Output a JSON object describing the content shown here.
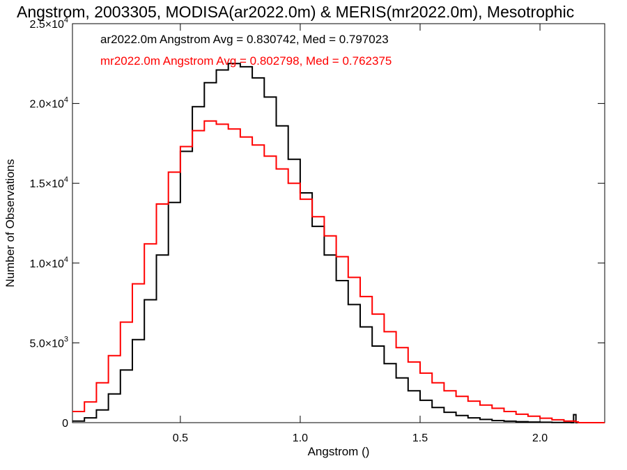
{
  "chart_data": {
    "type": "line",
    "title": "Angstrom, 2003305, MODISA(ar2022.0m) & MERIS(mr2022.0m), Mesotrophic",
    "xlabel": "Angstrom ()",
    "ylabel": "Number of Observations",
    "xlim": [
      0.05,
      2.27
    ],
    "ylim": [
      0,
      25000
    ],
    "x_ticks": [
      {
        "value": 0.5,
        "label": "0.5"
      },
      {
        "value": 1.0,
        "label": "1.0"
      },
      {
        "value": 1.5,
        "label": "1.5"
      },
      {
        "value": 2.0,
        "label": "2.0"
      }
    ],
    "y_ticks": [
      {
        "value": 0,
        "mant": "0",
        "exp": ""
      },
      {
        "value": 5000,
        "mant": "5.0×10",
        "exp": "3"
      },
      {
        "value": 10000,
        "mant": "1.0×10",
        "exp": "4"
      },
      {
        "value": 15000,
        "mant": "1.5×10",
        "exp": "4"
      },
      {
        "value": 20000,
        "mant": "2.0×10",
        "exp": "4"
      },
      {
        "value": 25000,
        "mant": "2.5×10",
        "exp": "4"
      }
    ],
    "grid": false,
    "step": true,
    "series": [
      {
        "name": "ar2022.0m",
        "color": "#000000",
        "stats_label": "ar2022.0m Angstrom Avg = 0.830742, Med = 0.797023",
        "x": [
          0.05,
          0.1,
          0.15,
          0.2,
          0.25,
          0.3,
          0.35,
          0.4,
          0.45,
          0.5,
          0.55,
          0.6,
          0.65,
          0.7,
          0.75,
          0.8,
          0.85,
          0.9,
          0.95,
          1.0,
          1.05,
          1.1,
          1.15,
          1.2,
          1.25,
          1.3,
          1.35,
          1.4,
          1.45,
          1.5,
          1.55,
          1.6,
          1.65,
          1.7,
          1.75,
          1.8,
          1.85,
          1.9,
          1.95,
          2.0,
          2.05,
          2.1,
          2.13,
          2.14,
          2.15,
          2.16,
          2.27
        ],
        "y": [
          100,
          300,
          800,
          1800,
          3300,
          5200,
          7700,
          10500,
          13800,
          17000,
          19800,
          21300,
          22100,
          22500,
          22300,
          21600,
          20400,
          18600,
          16500,
          14400,
          12300,
          10500,
          8900,
          7400,
          6000,
          4800,
          3700,
          2800,
          2000,
          1400,
          950,
          650,
          450,
          300,
          200,
          130,
          90,
          60,
          40,
          25,
          15,
          10,
          0,
          500,
          0,
          0,
          0
        ]
      },
      {
        "name": "mr2022.0m",
        "color": "#ff0000",
        "stats_label": "mr2022.0m Angstrom Avg = 0.802798, Med = 0.762375",
        "x": [
          0.05,
          0.1,
          0.15,
          0.2,
          0.25,
          0.3,
          0.35,
          0.4,
          0.45,
          0.5,
          0.55,
          0.6,
          0.65,
          0.7,
          0.75,
          0.8,
          0.85,
          0.9,
          0.95,
          1.0,
          1.05,
          1.1,
          1.15,
          1.2,
          1.25,
          1.3,
          1.35,
          1.4,
          1.45,
          1.5,
          1.55,
          1.6,
          1.65,
          1.7,
          1.75,
          1.8,
          1.85,
          1.9,
          1.95,
          2.0,
          2.05,
          2.1,
          2.15,
          2.16,
          2.27
        ],
        "y": [
          700,
          1300,
          2500,
          4200,
          6300,
          8700,
          11200,
          13700,
          15700,
          17300,
          18300,
          18900,
          18700,
          18400,
          17900,
          17400,
          16700,
          15900,
          15000,
          14000,
          12900,
          11700,
          10400,
          9100,
          7900,
          6800,
          5700,
          4700,
          3800,
          3100,
          2500,
          2000,
          1650,
          1350,
          1100,
          900,
          700,
          530,
          400,
          280,
          180,
          100,
          50,
          0,
          0
        ]
      }
    ]
  }
}
